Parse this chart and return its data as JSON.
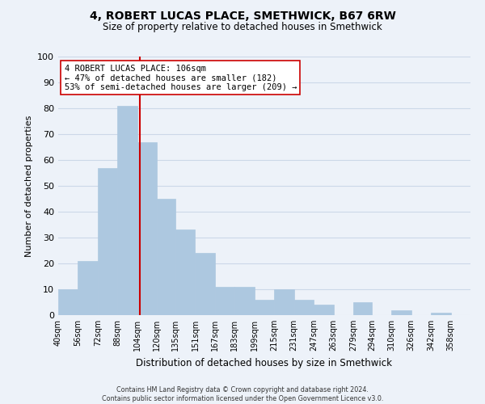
{
  "title": "4, ROBERT LUCAS PLACE, SMETHWICK, B67 6RW",
  "subtitle": "Size of property relative to detached houses in Smethwick",
  "xlabel": "Distribution of detached houses by size in Smethwick",
  "ylabel": "Number of detached properties",
  "footer_line1": "Contains HM Land Registry data © Crown copyright and database right 2024.",
  "footer_line2": "Contains public sector information licensed under the Open Government Licence v3.0.",
  "bin_labels": [
    "40sqm",
    "56sqm",
    "72sqm",
    "88sqm",
    "104sqm",
    "120sqm",
    "135sqm",
    "151sqm",
    "167sqm",
    "183sqm",
    "199sqm",
    "215sqm",
    "231sqm",
    "247sqm",
    "263sqm",
    "279sqm",
    "294sqm",
    "310sqm",
    "326sqm",
    "342sqm",
    "358sqm"
  ],
  "bin_edges": [
    40,
    56,
    72,
    88,
    104,
    120,
    135,
    151,
    167,
    183,
    199,
    215,
    231,
    247,
    263,
    279,
    294,
    310,
    326,
    342,
    358,
    374
  ],
  "counts": [
    10,
    21,
    57,
    81,
    67,
    45,
    33,
    24,
    11,
    11,
    6,
    10,
    6,
    4,
    0,
    5,
    0,
    2,
    0,
    1,
    0
  ],
  "bar_color": "#adc8e0",
  "bar_edge_color": "#adc8e0",
  "property_size": 106,
  "red_line_color": "#cc0000",
  "annotation_line1": "4 ROBERT LUCAS PLACE: 106sqm",
  "annotation_line2": "← 47% of detached houses are smaller (182)",
  "annotation_line3": "53% of semi-detached houses are larger (209) →",
  "annotation_box_color": "#ffffff",
  "annotation_box_edge_color": "#cc0000",
  "ylim": [
    0,
    100
  ],
  "yticks": [
    0,
    10,
    20,
    30,
    40,
    50,
    60,
    70,
    80,
    90,
    100
  ],
  "grid_color": "#ccd8e8",
  "background_color": "#edf2f9"
}
